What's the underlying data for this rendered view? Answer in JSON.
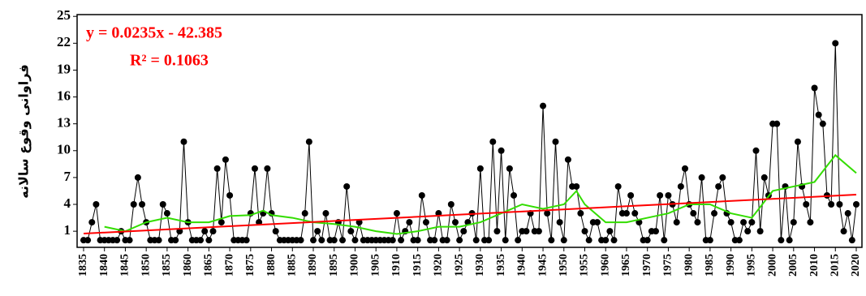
{
  "chart_data": {
    "type": "line",
    "y_label": "فراوانی وقوع سالانه",
    "equation": "y = 0.0235x - 42.385",
    "r_squared": "R² = 0.1063",
    "x": [
      1835,
      1836,
      1837,
      1838,
      1839,
      1840,
      1841,
      1842,
      1843,
      1844,
      1845,
      1846,
      1847,
      1848,
      1849,
      1850,
      1851,
      1852,
      1853,
      1854,
      1855,
      1856,
      1857,
      1858,
      1859,
      1860,
      1861,
      1862,
      1863,
      1864,
      1865,
      1866,
      1867,
      1868,
      1869,
      1870,
      1871,
      1872,
      1873,
      1874,
      1875,
      1876,
      1877,
      1878,
      1879,
      1880,
      1881,
      1882,
      1883,
      1884,
      1885,
      1886,
      1887,
      1888,
      1889,
      1890,
      1891,
      1892,
      1893,
      1894,
      1895,
      1896,
      1897,
      1898,
      1899,
      1900,
      1901,
      1902,
      1903,
      1904,
      1905,
      1906,
      1907,
      1908,
      1909,
      1910,
      1911,
      1912,
      1913,
      1914,
      1915,
      1916,
      1917,
      1918,
      1919,
      1920,
      1921,
      1922,
      1923,
      1924,
      1925,
      1926,
      1927,
      1928,
      1929,
      1930,
      1931,
      1932,
      1933,
      1934,
      1935,
      1936,
      1937,
      1938,
      1939,
      1940,
      1941,
      1942,
      1943,
      1944,
      1945,
      1946,
      1947,
      1948,
      1949,
      1950,
      1951,
      1952,
      1953,
      1954,
      1955,
      1956,
      1957,
      1958,
      1959,
      1960,
      1961,
      1962,
      1963,
      1964,
      1965,
      1966,
      1967,
      1968,
      1969,
      1970,
      1971,
      1972,
      1973,
      1974,
      1975,
      1976,
      1977,
      1978,
      1979,
      1980,
      1981,
      1982,
      1983,
      1984,
      1985,
      1986,
      1987,
      1988,
      1989,
      1990,
      1991,
      1992,
      1993,
      1994,
      1995,
      1996,
      1997,
      1998,
      1999,
      2000,
      2001,
      2002,
      2003,
      2004,
      2005,
      2006,
      2007,
      2008,
      2009,
      2010,
      2011,
      2012,
      2013,
      2014,
      2015,
      2016,
      2017,
      2018,
      2019,
      2020
    ],
    "series": [
      {
        "color": "#000000",
        "values": [
          0,
          0,
          2,
          4,
          0,
          0,
          0,
          0,
          0,
          1,
          0,
          0,
          4,
          7,
          4,
          2,
          0,
          0,
          0,
          4,
          3,
          0,
          0,
          1,
          11,
          2,
          0,
          0,
          0,
          1,
          0,
          1,
          8,
          2,
          9,
          5,
          0,
          0,
          0,
          0,
          3,
          8,
          2,
          3,
          8,
          3,
          1,
          0,
          0,
          0,
          0,
          0,
          0,
          3,
          11,
          0,
          1,
          0,
          3,
          0,
          0,
          2,
          0,
          6,
          1,
          0,
          2,
          0,
          0,
          0,
          0,
          0,
          0,
          0,
          0,
          3,
          0,
          1,
          2,
          0,
          0,
          5,
          2,
          0,
          0,
          3,
          0,
          0,
          4,
          2,
          0,
          1,
          2,
          3,
          0,
          8,
          0,
          0,
          11,
          1,
          10,
          0,
          8,
          5,
          0,
          1,
          1,
          3,
          1,
          1,
          15,
          3,
          0,
          11,
          2,
          0,
          9,
          6,
          6,
          3,
          1,
          0,
          2,
          2,
          0,
          0,
          1,
          0,
          6,
          3,
          3,
          5,
          3,
          2,
          0,
          0,
          1,
          1,
          5,
          0,
          5,
          4,
          2,
          6,
          8,
          4,
          3,
          2,
          7,
          0,
          0,
          3,
          6,
          7,
          3,
          2,
          0,
          0,
          2,
          1,
          2,
          10,
          1,
          7,
          5,
          13,
          13,
          0,
          6,
          0,
          2,
          11,
          6,
          4,
          2,
          17,
          14,
          13,
          5,
          4,
          22,
          4,
          1,
          3,
          0,
          4
        ]
      },
      {
        "color": "#33dd00",
        "x": [
          1840,
          1845,
          1850,
          1855,
          1860,
          1865,
          1870,
          1875,
          1878,
          1880,
          1885,
          1890,
          1895,
          1900,
          1905,
          1910,
          1915,
          1920,
          1925,
          1930,
          1935,
          1940,
          1945,
          1950,
          1953,
          1955,
          1960,
          1965,
          1970,
          1975,
          1980,
          1985,
          1990,
          1995,
          2000,
          2005,
          2010,
          2015,
          2020
        ],
        "values": [
          1.5,
          1,
          2,
          2.5,
          2,
          2,
          2.7,
          2.8,
          3.3,
          2.8,
          2.5,
          2,
          1.8,
          1.5,
          1,
          0.7,
          1,
          1.5,
          1.5,
          2,
          3,
          4,
          3.5,
          4,
          5.5,
          4,
          2,
          2,
          2.5,
          3,
          4,
          4,
          3,
          2.5,
          5.5,
          6,
          6.5,
          9.5,
          7.5
        ]
      },
      {
        "color": "#ff0000",
        "x": [
          1835,
          2020
        ],
        "values": [
          0.737,
          5.085
        ]
      }
    ],
    "xlim": [
      1833.45,
      2021.36
    ],
    "xticks": [
      1835,
      1840,
      1845,
      1850,
      1855,
      1860,
      1865,
      1870,
      1875,
      1880,
      1885,
      1890,
      1895,
      1900,
      1905,
      1910,
      1915,
      1920,
      1925,
      1930,
      1935,
      1940,
      1945,
      1950,
      1955,
      1960,
      1965,
      1970,
      1975,
      1980,
      1985,
      1990,
      1995,
      2000,
      2005,
      2010,
      2015,
      2020
    ],
    "ylim": [
      -0.8,
      25.2
    ],
    "yticks": [
      1,
      4,
      7,
      10,
      13,
      16,
      19,
      22,
      25
    ]
  }
}
